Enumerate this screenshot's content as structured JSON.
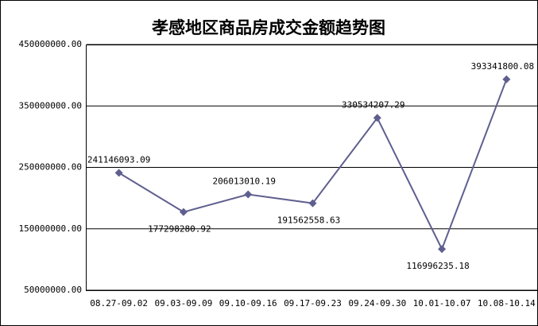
{
  "chart_data": {
    "type": "line",
    "title": "孝感地区商品房成交金额趋势图",
    "categories": [
      "08.27-09.02",
      "09.03-09.09",
      "09.10-09.16",
      "09.17-09.23",
      "09.24-09.30",
      "10.01-10.07",
      "10.08-10.14"
    ],
    "values": [
      241146093.09,
      177298280.92,
      206013010.19,
      191562558.63,
      330534207.29,
      116996235.18,
      393341800.08
    ],
    "color": "#5f5f8f",
    "ylim": [
      50000000,
      450000000
    ],
    "yticks": [
      {
        "value": 50000000,
        "label": "50000000.00"
      },
      {
        "value": 150000000,
        "label": "150000000.00"
      },
      {
        "value": 250000000,
        "label": "250000000.00"
      },
      {
        "value": 350000000,
        "label": "350000000.00"
      },
      {
        "value": 450000000,
        "label": "450000000.00"
      }
    ],
    "grid": true
  }
}
